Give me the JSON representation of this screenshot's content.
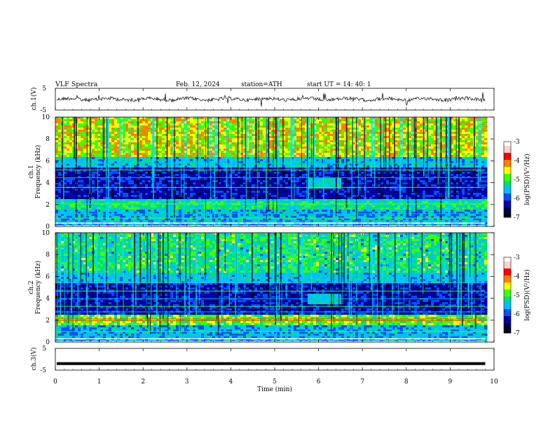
{
  "header": {
    "title": "VLF  Spectra",
    "date": "Feb. 12, 2024",
    "station": "station=ATH",
    "start_ut": "start  UT  =    14: 40: 1"
  },
  "chart_data": [
    {
      "type": "line",
      "panel": "ch1-waveform",
      "ylabel": "ch.1(V)",
      "ylim": [
        -5,
        5
      ],
      "yticks": [
        "5",
        "-5"
      ],
      "xlim": [
        0,
        10
      ],
      "description_values": "noisy waveform centred near 0 V with spikes"
    },
    {
      "type": "heatmap",
      "panel": "ch1-spectrogram",
      "ylabel": "Frequency (kHz)",
      "channel_label": "ch.1",
      "ylim": [
        0,
        10
      ],
      "yticks": [
        "0",
        "2",
        "4",
        "6",
        "8",
        "10"
      ],
      "xlim": [
        0,
        10
      ],
      "data_extent_min": 9.8,
      "colorbar": {
        "label": "log(PSD)(V²/Hz)",
        "ticks": [
          "-3",
          "-4",
          "-5",
          "-6",
          "-7"
        ],
        "range": [
          -7,
          -3
        ]
      }
    },
    {
      "type": "heatmap",
      "panel": "ch2-spectrogram",
      "ylabel": "Frequency (kHz)",
      "channel_label": "ch.2",
      "ylim": [
        0,
        10
      ],
      "yticks": [
        "0",
        "2",
        "4",
        "6",
        "8",
        "10"
      ],
      "xlim": [
        0,
        10
      ],
      "data_extent_min": 9.8,
      "colorbar": {
        "label": "log(PSD)(V²/Hz)",
        "ticks": [
          "-3",
          "-4",
          "-5",
          "-6",
          "-7"
        ],
        "range": [
          -7,
          -3
        ]
      }
    },
    {
      "type": "line",
      "panel": "ch3-waveform",
      "ylabel": "ch.3(V)",
      "ylim": [
        -5,
        5
      ],
      "yticks": [
        "5",
        "-5"
      ],
      "level": -2,
      "xlim": [
        0,
        10
      ]
    }
  ],
  "xaxis": {
    "label": "Time  (min)",
    "ticks": [
      "0",
      "1",
      "2",
      "3",
      "4",
      "5",
      "6",
      "7",
      "8",
      "9",
      "10"
    ]
  },
  "colors": {
    "colormap": [
      "#000000",
      "#000040",
      "#0000a0",
      "#0050ff",
      "#00c0ff",
      "#00e080",
      "#40ff00",
      "#ffff00",
      "#ff8000",
      "#ff0000",
      "#ffd0d0",
      "#ffffff"
    ]
  }
}
